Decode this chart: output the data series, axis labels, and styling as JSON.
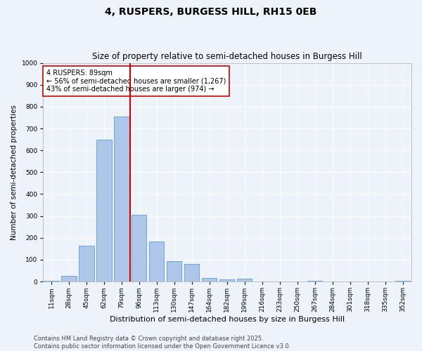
{
  "title": "4, RUSPERS, BURGESS HILL, RH15 0EB",
  "subtitle": "Size of property relative to semi-detached houses in Burgess Hill",
  "xlabel": "Distribution of semi-detached houses by size in Burgess Hill",
  "ylabel": "Number of semi-detached properties",
  "bins": [
    "11sqm",
    "28sqm",
    "45sqm",
    "62sqm",
    "79sqm",
    "96sqm",
    "113sqm",
    "130sqm",
    "147sqm",
    "164sqm",
    "182sqm",
    "199sqm",
    "216sqm",
    "233sqm",
    "250sqm",
    "267sqm",
    "284sqm",
    "301sqm",
    "318sqm",
    "335sqm",
    "352sqm"
  ],
  "values": [
    5,
    25,
    165,
    648,
    755,
    305,
    182,
    92,
    80,
    15,
    10,
    13,
    0,
    0,
    0,
    5,
    0,
    0,
    0,
    0,
    5
  ],
  "bar_color": "#aec6e8",
  "bar_edge_color": "#5a9fd4",
  "vline_x": 4.5,
  "vline_color": "#cc0000",
  "annotation_text": "4 RUSPERS: 89sqm\n← 56% of semi-detached houses are smaller (1,267)\n43% of semi-detached houses are larger (974) →",
  "annotation_box_color": "#ffffff",
  "annotation_box_edge_color": "#cc0000",
  "ylim": [
    0,
    1000
  ],
  "yticks": [
    0,
    100,
    200,
    300,
    400,
    500,
    600,
    700,
    800,
    900,
    1000
  ],
  "footer_line1": "Contains HM Land Registry data © Crown copyright and database right 2025.",
  "footer_line2": "Contains public sector information licensed under the Open Government Licence v3.0.",
  "bg_color": "#eef2fb",
  "grid_color": "#ffffff",
  "title_fontsize": 10,
  "subtitle_fontsize": 8.5,
  "tick_fontsize": 6.5,
  "ylabel_fontsize": 7.5,
  "xlabel_fontsize": 8,
  "footer_fontsize": 6,
  "annotation_fontsize": 7
}
